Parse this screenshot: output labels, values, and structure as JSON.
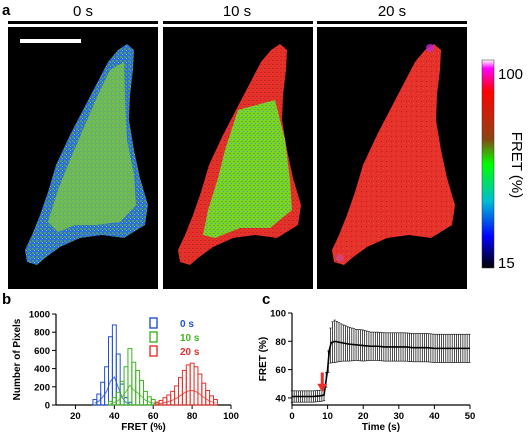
{
  "panels": {
    "a": {
      "letter": "a",
      "time_labels": [
        "0 s",
        "10 s",
        "20 s"
      ],
      "colorbar": {
        "label": "FRET (%)",
        "max_label": "100",
        "min_label": "15",
        "colors": [
          "#ffffff",
          "#ff00ff",
          "#ff0000",
          "#8b4513",
          "#00ff00",
          "#00bcd4",
          "#0000ff",
          "#000000"
        ]
      }
    },
    "b": {
      "letter": "b"
    },
    "c": {
      "letter": "c"
    }
  },
  "chart_data": [
    {
      "type": "bar",
      "subtype": "histogram",
      "xlabel": "FRET (%)",
      "ylabel": "Number of Pixels",
      "xlim": [
        10,
        100
      ],
      "ylim": [
        0,
        1000
      ],
      "xticks": [
        20,
        40,
        60,
        80,
        100
      ],
      "yticks": [
        0,
        200,
        400,
        600,
        800,
        1000
      ],
      "legend_position": "top-right",
      "bin_width": 2,
      "series": [
        {
          "name": "0 s",
          "color": "#1f4fd6",
          "x": [
            30,
            32,
            34,
            36,
            38,
            40,
            42,
            44,
            46,
            48
          ],
          "values": [
            60,
            120,
            250,
            420,
            750,
            880,
            560,
            230,
            80,
            30
          ]
        },
        {
          "name": "10 s",
          "color": "#3cb521",
          "x": [
            38,
            40,
            42,
            44,
            46,
            48,
            50,
            52,
            54,
            56,
            58,
            60,
            62
          ],
          "values": [
            40,
            80,
            140,
            260,
            420,
            620,
            470,
            380,
            270,
            150,
            90,
            60,
            30
          ]
        },
        {
          "name": "20 s",
          "color": "#e8302a",
          "x": [
            62,
            64,
            66,
            68,
            70,
            72,
            74,
            76,
            78,
            80,
            82,
            84,
            86,
            88,
            90,
            92
          ],
          "values": [
            30,
            50,
            80,
            110,
            150,
            210,
            300,
            380,
            440,
            460,
            420,
            340,
            240,
            160,
            100,
            60
          ]
        }
      ]
    },
    {
      "type": "line",
      "xlabel": "Time (s)",
      "ylabel": "FRET (%)",
      "xlim": [
        0,
        50
      ],
      "ylim": [
        35,
        100
      ],
      "xticks": [
        0,
        10,
        20,
        30,
        40,
        50
      ],
      "yticks": [
        40,
        60,
        80,
        100
      ],
      "marker_x": 8.5,
      "series": [
        {
          "x": [
            0,
            2,
            4,
            6,
            8,
            9,
            10,
            10.5,
            11,
            12,
            14,
            16,
            18,
            20,
            22,
            24,
            26,
            28,
            30,
            32,
            34,
            36,
            38,
            40,
            42,
            44,
            46,
            48,
            50
          ],
          "values": [
            41,
            41,
            41,
            41,
            41.5,
            42,
            60,
            74,
            79,
            80,
            79,
            78,
            77.5,
            77,
            76.5,
            76.5,
            76,
            76,
            76,
            76,
            75.5,
            75.5,
            75.5,
            75,
            75,
            75,
            75,
            75,
            75
          ],
          "errors": [
            4,
            4,
            4,
            4,
            4,
            4,
            6,
            10,
            14,
            15,
            13,
            12,
            11,
            11,
            10,
            10,
            10,
            10,
            10,
            10,
            10,
            10,
            10,
            10,
            10,
            10,
            10,
            10,
            10
          ]
        }
      ]
    }
  ]
}
